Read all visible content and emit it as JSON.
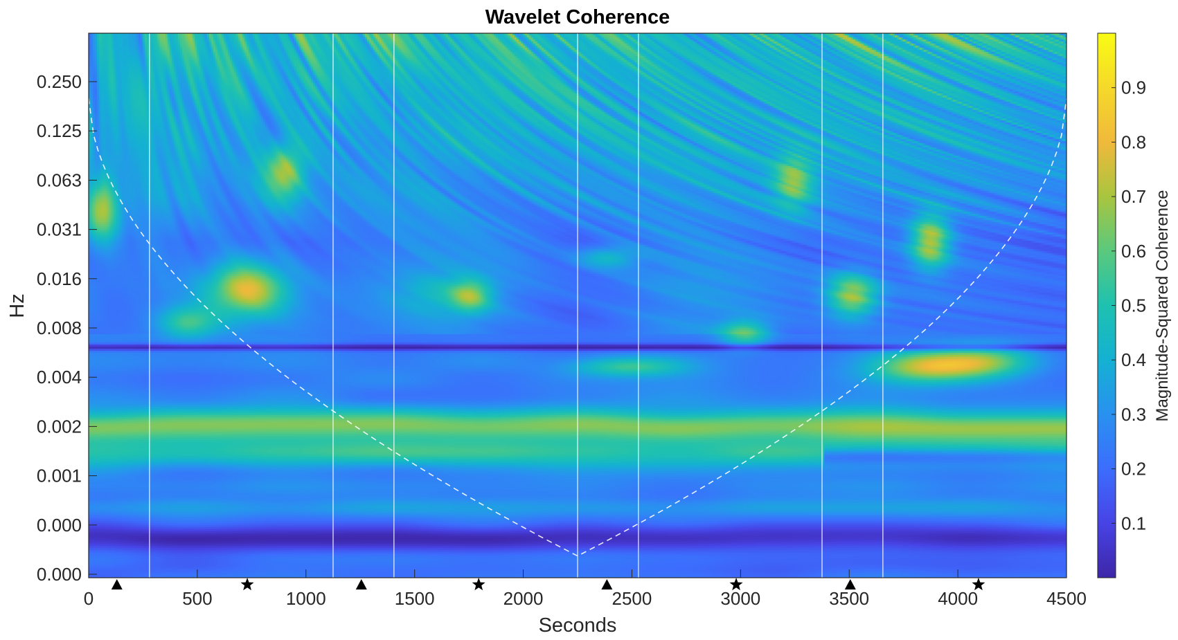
{
  "chart_data": {
    "type": "heatmap",
    "title": "Wavelet Coherence",
    "xlabel": "Seconds",
    "ylabel": "Hz",
    "xlim": [
      0,
      4500
    ],
    "x_ticks": [
      0,
      500,
      1000,
      1500,
      2000,
      2500,
      3000,
      3500,
      4000,
      4500
    ],
    "y_ticks": [
      "0.250",
      "0.125",
      "0.063",
      "0.031",
      "0.016",
      "0.008",
      "0.004",
      "0.002",
      "0.001",
      "0.000",
      "0.000"
    ],
    "y_scale": "log2",
    "colorbar": {
      "label": "Magnitude-Squared Coherence",
      "range": [
        0,
        1
      ],
      "ticks": [
        0.1,
        0.2,
        0.3,
        0.4,
        0.5,
        0.6,
        0.7,
        0.8,
        0.9
      ],
      "colormap": "parula"
    },
    "event_lines_seconds": [
      280,
      1125,
      1405,
      2250,
      2530,
      3375,
      3655
    ],
    "markers": [
      {
        "x": 130,
        "shape": "triangle"
      },
      {
        "x": 730,
        "shape": "star"
      },
      {
        "x": 1255,
        "shape": "triangle"
      },
      {
        "x": 1795,
        "shape": "star"
      },
      {
        "x": 2385,
        "shape": "triangle"
      },
      {
        "x": 2980,
        "shape": "star"
      },
      {
        "x": 3505,
        "shape": "triangle"
      },
      {
        "x": 4095,
        "shape": "star"
      }
    ],
    "cone_of_influence": "dashed white",
    "high_coherence_regions": [
      {
        "x": 50,
        "y": "0.031",
        "value": 0.8
      },
      {
        "x": 700,
        "y": "0.012",
        "value": 0.8
      },
      {
        "x": 1900,
        "y": "0.002",
        "value": 0.75
      },
      {
        "x": 2600,
        "y": "0.0015",
        "value": 0.7
      },
      {
        "x": 3550,
        "y": "0.012",
        "value": 0.75
      },
      {
        "x": 3800,
        "y": "0.004",
        "value": 0.8
      },
      {
        "x": 3800,
        "y": "0.031",
        "value": 0.8
      }
    ]
  }
}
